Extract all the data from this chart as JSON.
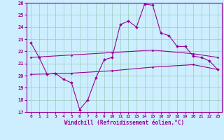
{
  "xlabel": "Windchill (Refroidissement éolien,°C)",
  "background_color": "#cceeff",
  "line_color": "#990099",
  "grid_color": "#99ccbb",
  "xlim": [
    -0.5,
    23.5
  ],
  "ylim": [
    17,
    26
  ],
  "yticks": [
    17,
    18,
    19,
    20,
    21,
    22,
    23,
    24,
    25,
    26
  ],
  "xticks": [
    0,
    1,
    2,
    3,
    4,
    5,
    6,
    7,
    8,
    9,
    10,
    11,
    12,
    13,
    14,
    15,
    16,
    17,
    18,
    19,
    20,
    21,
    22,
    23
  ],
  "line1_x": [
    0,
    1,
    2,
    3,
    4,
    5,
    6,
    7,
    8,
    9,
    10,
    11,
    12,
    13,
    14,
    15,
    16,
    17,
    18,
    19,
    20,
    21,
    22,
    23
  ],
  "line1_y": [
    22.7,
    21.5,
    20.1,
    20.2,
    19.7,
    19.4,
    17.2,
    18.0,
    19.8,
    21.3,
    21.5,
    24.2,
    24.5,
    24.0,
    25.9,
    25.8,
    23.5,
    23.3,
    22.4,
    22.4,
    21.6,
    21.5,
    21.2,
    20.5
  ],
  "line2_x": [
    0,
    5,
    10,
    15,
    20,
    23
  ],
  "line2_y": [
    21.5,
    21.7,
    21.9,
    22.1,
    21.8,
    21.5
  ],
  "line3_x": [
    0,
    5,
    10,
    15,
    20,
    23
  ],
  "line3_y": [
    20.1,
    20.2,
    20.4,
    20.7,
    20.9,
    20.5
  ]
}
